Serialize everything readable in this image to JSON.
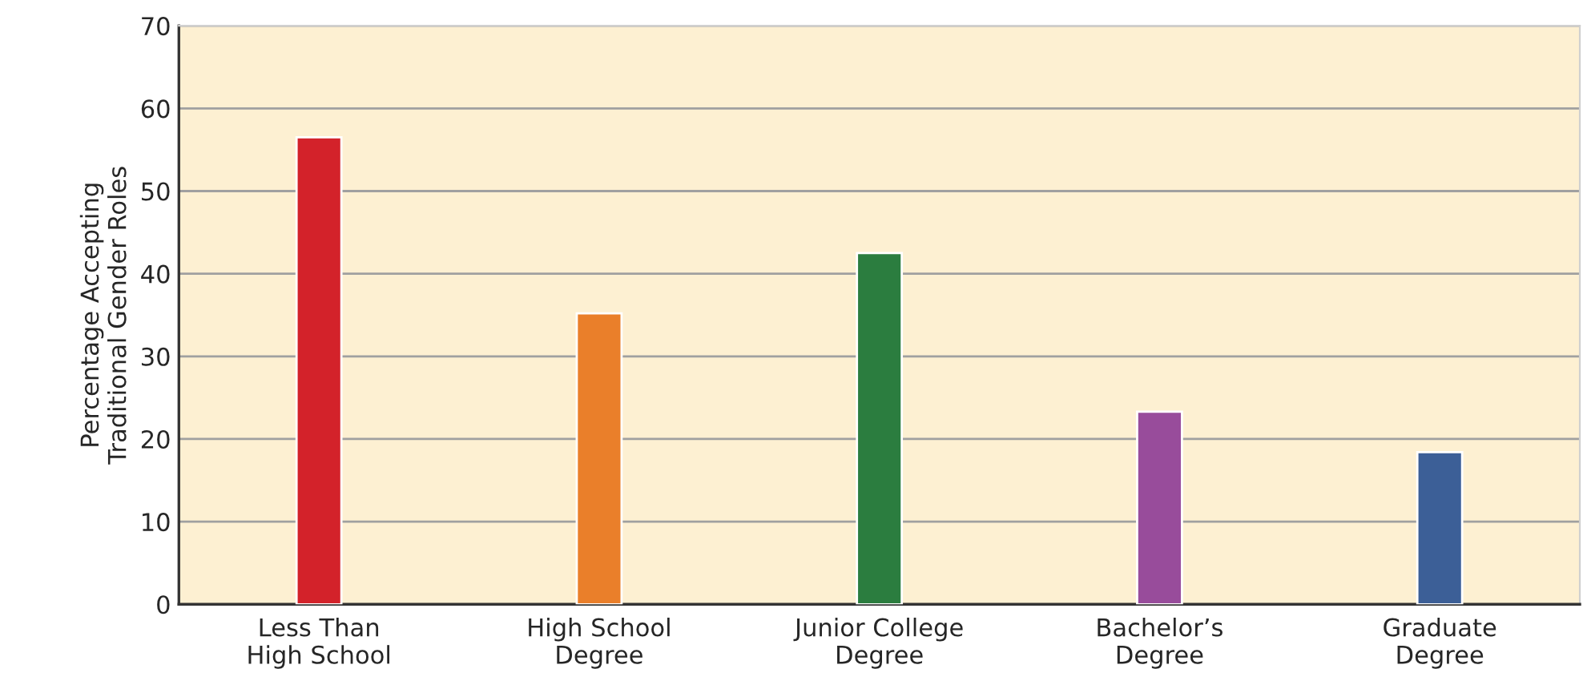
{
  "chart_data": {
    "type": "bar",
    "ylabel": "Percentage Accepting\nTraditional Gender Roles",
    "categories": [
      "Less Than\nHigh School",
      "High School\nDegree",
      "Junior College\nDegree",
      "Bachelor’s\nDegree",
      "Graduate\nDegree"
    ],
    "values": [
      56.5,
      35.2,
      42.5,
      23.3,
      18.4
    ],
    "colors": [
      "#d3222a",
      "#ea7f2a",
      "#2b7d3f",
      "#984c9b",
      "#3c5f97"
    ],
    "ylim": [
      0,
      70
    ],
    "yticks": [
      0,
      10,
      20,
      30,
      40,
      50,
      60,
      70
    ],
    "grid": "y"
  }
}
